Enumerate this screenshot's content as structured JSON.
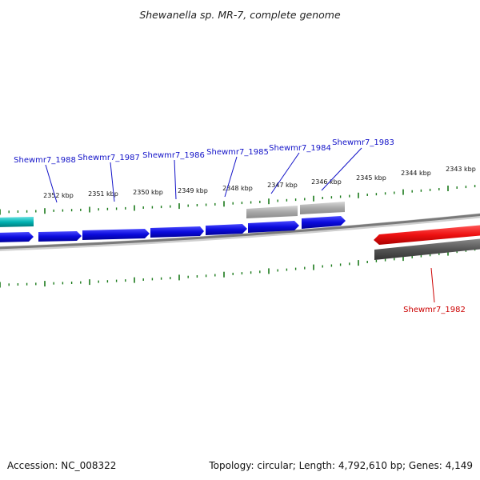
{
  "title": "Shewanella sp. MR-7, complete genome",
  "footer": {
    "accession": "Accession: NC_008322",
    "summary": "Topology: circular; Length: 4,792,610 bp; Genes: 4,149"
  },
  "colors": {
    "forward_gene": "#0b0bdd",
    "reverse_gene_highlight": "#ee1111",
    "pseudo_gene": "#a0a0a0",
    "other_feature_dark": "#555555",
    "rna_feature": "#00b3b3",
    "tick": "#1a7a1a",
    "backbone": "#777777",
    "label_forward": "#1212c8",
    "label_reverse": "#cc0000"
  },
  "scale_ticks": [
    {
      "label": "2352 kbp"
    },
    {
      "label": "2351 kbp"
    },
    {
      "label": "2350 kbp"
    },
    {
      "label": "2349 kbp"
    },
    {
      "label": "2348 kbp"
    },
    {
      "label": "2347 kbp"
    },
    {
      "label": "2346 kbp"
    },
    {
      "label": "2345 kbp"
    },
    {
      "label": "2344 kbp"
    },
    {
      "label": "2343 kbp"
    }
  ],
  "gene_labels": {
    "g1988": "Shewmr7_1988",
    "g1987": "Shewmr7_1987",
    "g1986": "Shewmr7_1986",
    "g1985": "Shewmr7_1985",
    "g1984": "Shewmr7_1984",
    "g1983": "Shewmr7_1983",
    "g1982": "Shewmr7_1982"
  }
}
